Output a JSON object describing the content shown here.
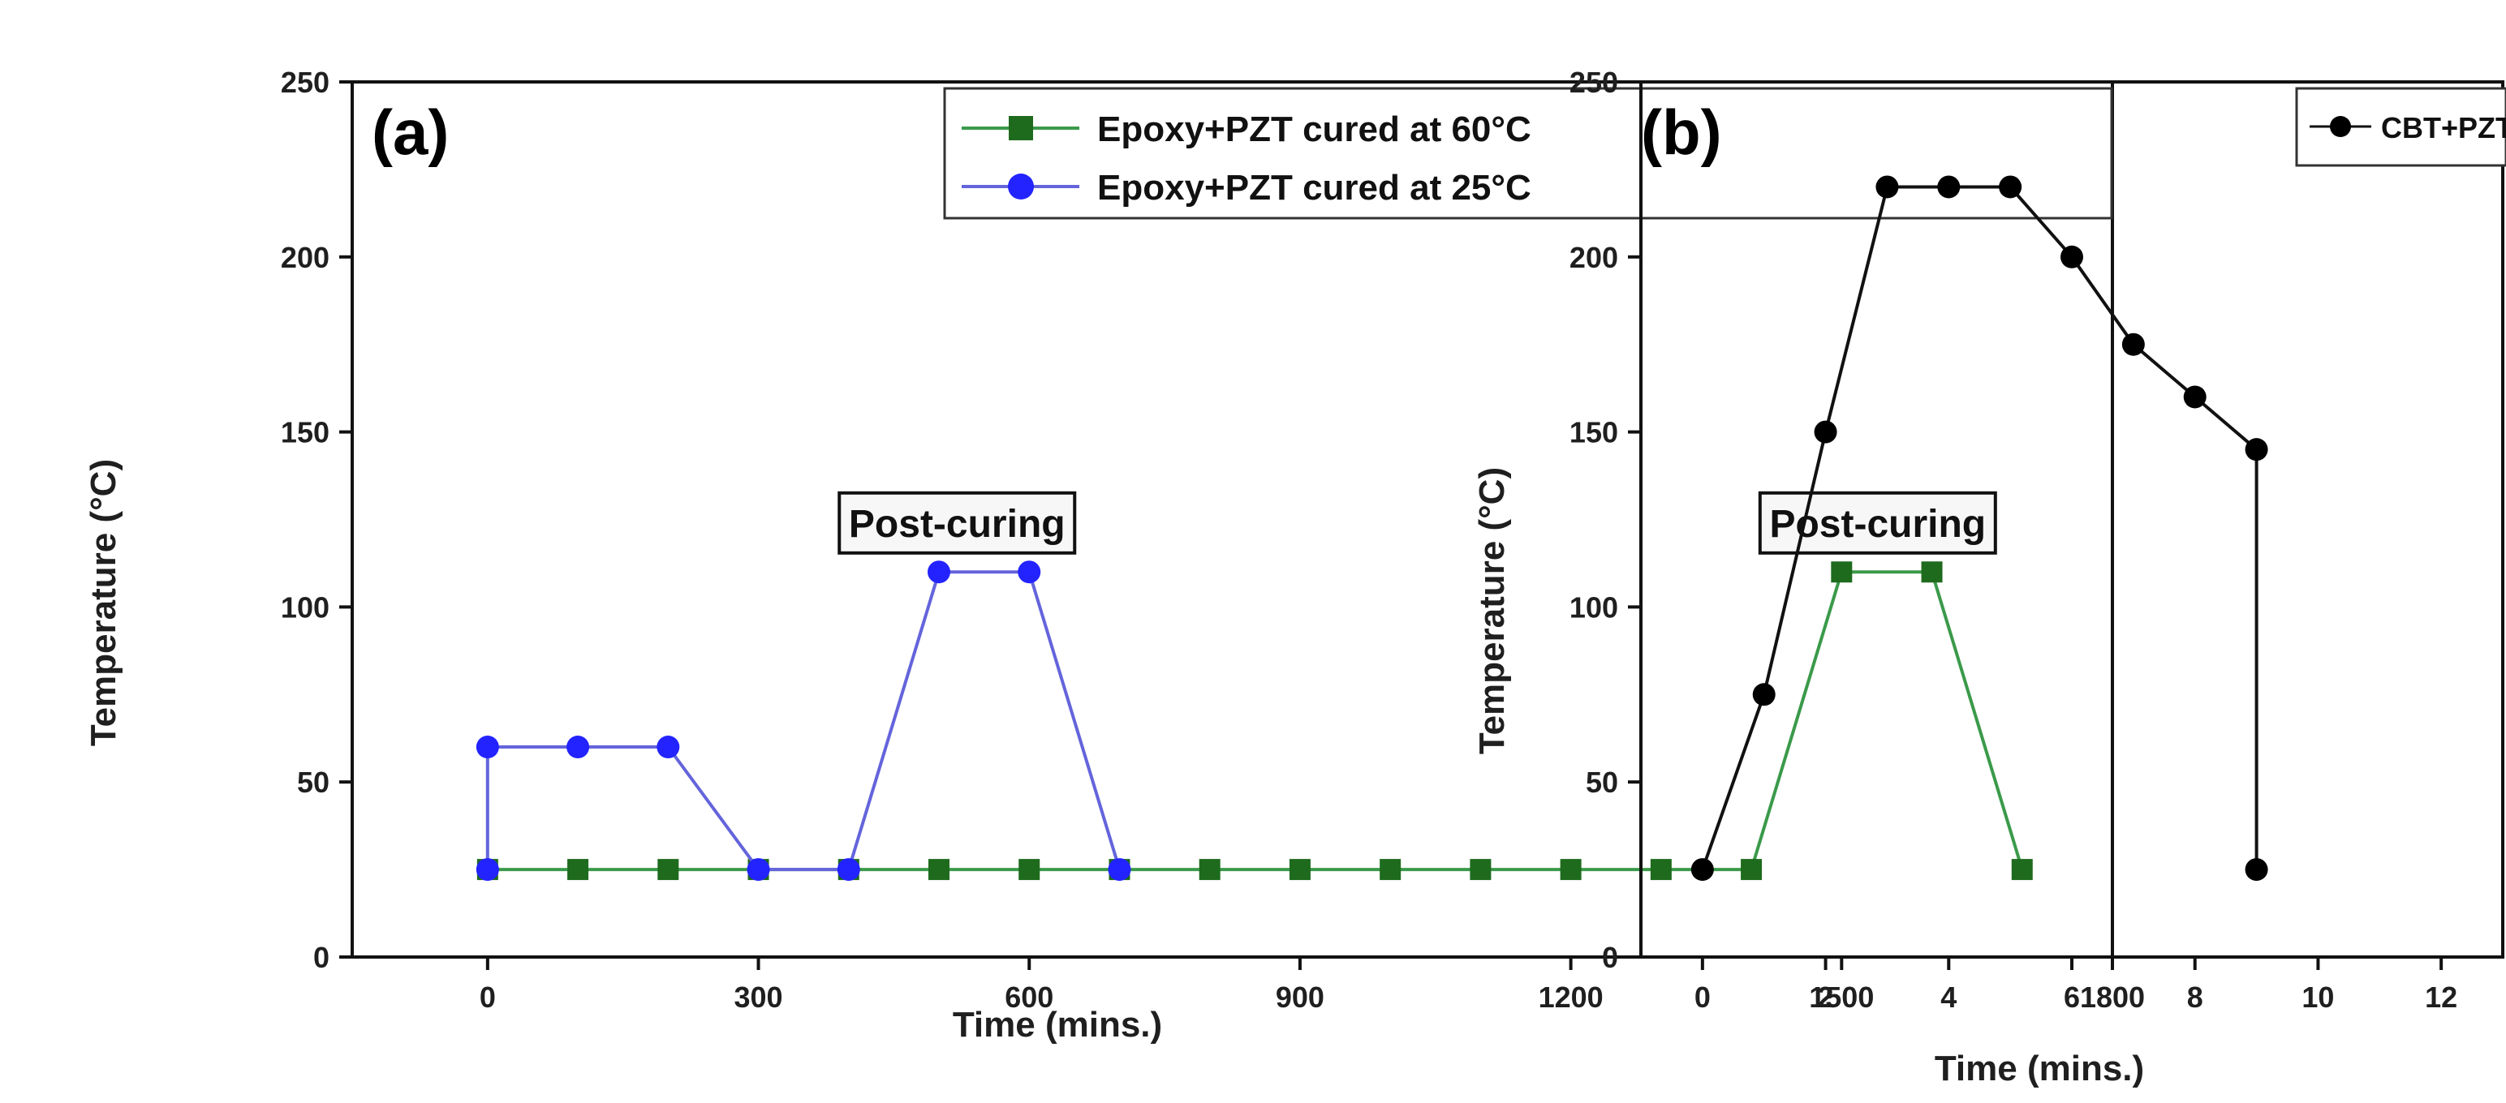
{
  "chart_data": [
    {
      "type": "line",
      "panel_label": "(a)",
      "xlabel": "Time (mins.)",
      "ylabel": "Temperature (°C)",
      "xlim": [
        -150,
        1800
      ],
      "ylim": [
        0,
        250
      ],
      "xticks": [
        0,
        300,
        600,
        900,
        1200,
        1500,
        1800
      ],
      "yticks": [
        0,
        50,
        100,
        150,
        200,
        250
      ],
      "legend_position": "top-right",
      "series": [
        {
          "name": "Epoxy+PZT cured at 60°C",
          "marker": "square",
          "color": "#3a9a4a",
          "marker_color": "#1e6b1e",
          "x": [
            0,
            100,
            200,
            300,
            400,
            500,
            600,
            700,
            800,
            900,
            1000,
            1100,
            1200,
            1300,
            1400,
            1500,
            1600,
            1700
          ],
          "y": [
            25,
            25,
            25,
            25,
            25,
            25,
            25,
            25,
            25,
            25,
            25,
            25,
            25,
            25,
            25,
            110,
            110,
            25
          ]
        },
        {
          "name": "Epoxy+PZT cured at 25°C",
          "marker": "circle",
          "color": "#6464dc",
          "marker_color": "#2323ff",
          "x": [
            0,
            0,
            100,
            200,
            300,
            400,
            500,
            600,
            700
          ],
          "y": [
            25,
            60,
            60,
            60,
            25,
            25,
            110,
            110,
            25
          ]
        }
      ],
      "annotations": [
        {
          "text": "Post-curing",
          "x": 520,
          "y": 124
        },
        {
          "text": "Post-curing",
          "x": 1540,
          "y": 124
        }
      ]
    },
    {
      "type": "line",
      "panel_label": "(b)",
      "xlabel": "Time (mins.)",
      "ylabel": "Temperature (°C)",
      "xlim": [
        -1,
        13
      ],
      "ylim": [
        0,
        250
      ],
      "xticks": [
        0,
        2,
        4,
        6,
        8,
        10,
        12
      ],
      "yticks": [
        0,
        50,
        100,
        150,
        200,
        250
      ],
      "legend_position": "top-right",
      "series": [
        {
          "name": "CBT+PZT",
          "marker": "circle",
          "color": "#111111",
          "marker_color": "#000000",
          "x": [
            0,
            1,
            2,
            3,
            4,
            5,
            6,
            7,
            8,
            9,
            9
          ],
          "y": [
            25,
            75,
            150,
            220,
            220,
            220,
            200,
            175,
            160,
            145,
            25
          ]
        }
      ]
    }
  ]
}
